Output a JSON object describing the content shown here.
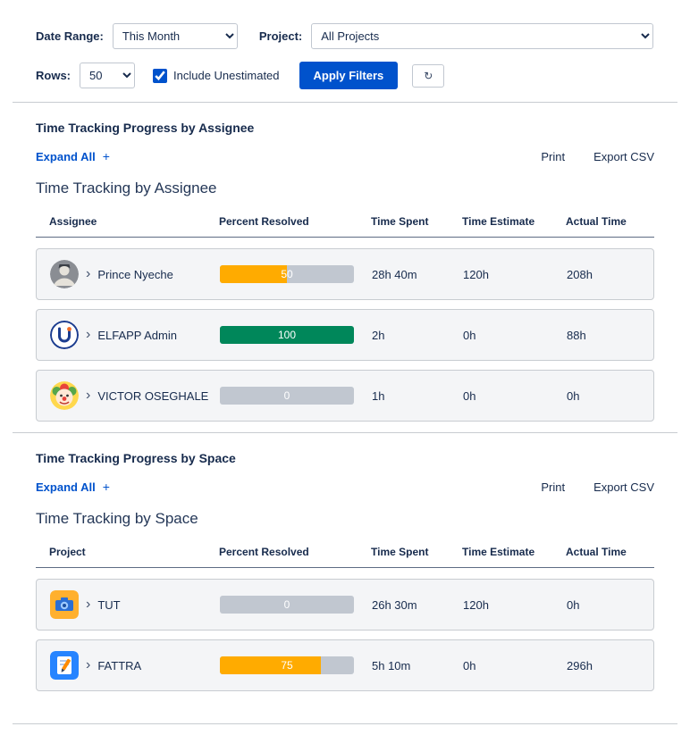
{
  "colors": {
    "accent": "#0052CC",
    "bar_track": "#C1C7D0",
    "bar_orange": "#FFAB00",
    "bar_green": "#00875A"
  },
  "icons": {
    "chevron_right": "›",
    "refresh": "↻",
    "expand_plus": "+"
  },
  "filters": {
    "date_range": {
      "label": "Date Range:",
      "value": "This Month"
    },
    "project": {
      "label": "Project:",
      "value": "All Projects"
    },
    "rows": {
      "label": "Rows:",
      "value": "50"
    },
    "include_unestimated": {
      "label": "Include Unestimated",
      "checked": true
    },
    "apply_button": "Apply Filters"
  },
  "sections": [
    {
      "title": "Time Tracking Progress by Assignee",
      "expand_all": "Expand All",
      "print": "Print",
      "export_csv": "Export CSV",
      "subtitle": "Time Tracking by Assignee",
      "columns": [
        "Assignee",
        "Percent Resolved",
        "Time Spent",
        "Time Estimate",
        "Actual Time"
      ],
      "rows": [
        {
          "name": "Prince Nyeche",
          "avatar": "person-photo-avatar",
          "percent": 50,
          "bar_color": "#FFAB00",
          "time_spent": "28h 40m",
          "time_estimate": "120h",
          "actual_time": "208h"
        },
        {
          "name": "ELFAPP Admin",
          "avatar": "elfapp-logo-avatar",
          "percent": 100,
          "bar_color": "#00875A",
          "time_spent": "2h",
          "time_estimate": "0h",
          "actual_time": "88h"
        },
        {
          "name": "VICTOR OSEGHALE",
          "avatar": "clown-avatar",
          "percent": 0,
          "bar_color": "#C1C7D0",
          "time_spent": "1h",
          "time_estimate": "0h",
          "actual_time": "0h"
        }
      ]
    },
    {
      "title": "Time Tracking Progress by Space",
      "expand_all": "Expand All",
      "print": "Print",
      "export_csv": "Export CSV",
      "subtitle": "Time Tracking by Space",
      "columns": [
        "Project",
        "Percent Resolved",
        "Time Spent",
        "Time Estimate",
        "Actual Time"
      ],
      "rows": [
        {
          "name": "TUT",
          "avatar": "camera-project-icon",
          "percent": 0,
          "bar_color": "#C1C7D0",
          "time_spent": "26h 30m",
          "time_estimate": "120h",
          "actual_time": "0h"
        },
        {
          "name": "FATTRA",
          "avatar": "notepad-project-icon",
          "percent": 75,
          "bar_color": "#FFAB00",
          "time_spent": "5h 10m",
          "time_estimate": "0h",
          "actual_time": "296h"
        }
      ]
    }
  ]
}
